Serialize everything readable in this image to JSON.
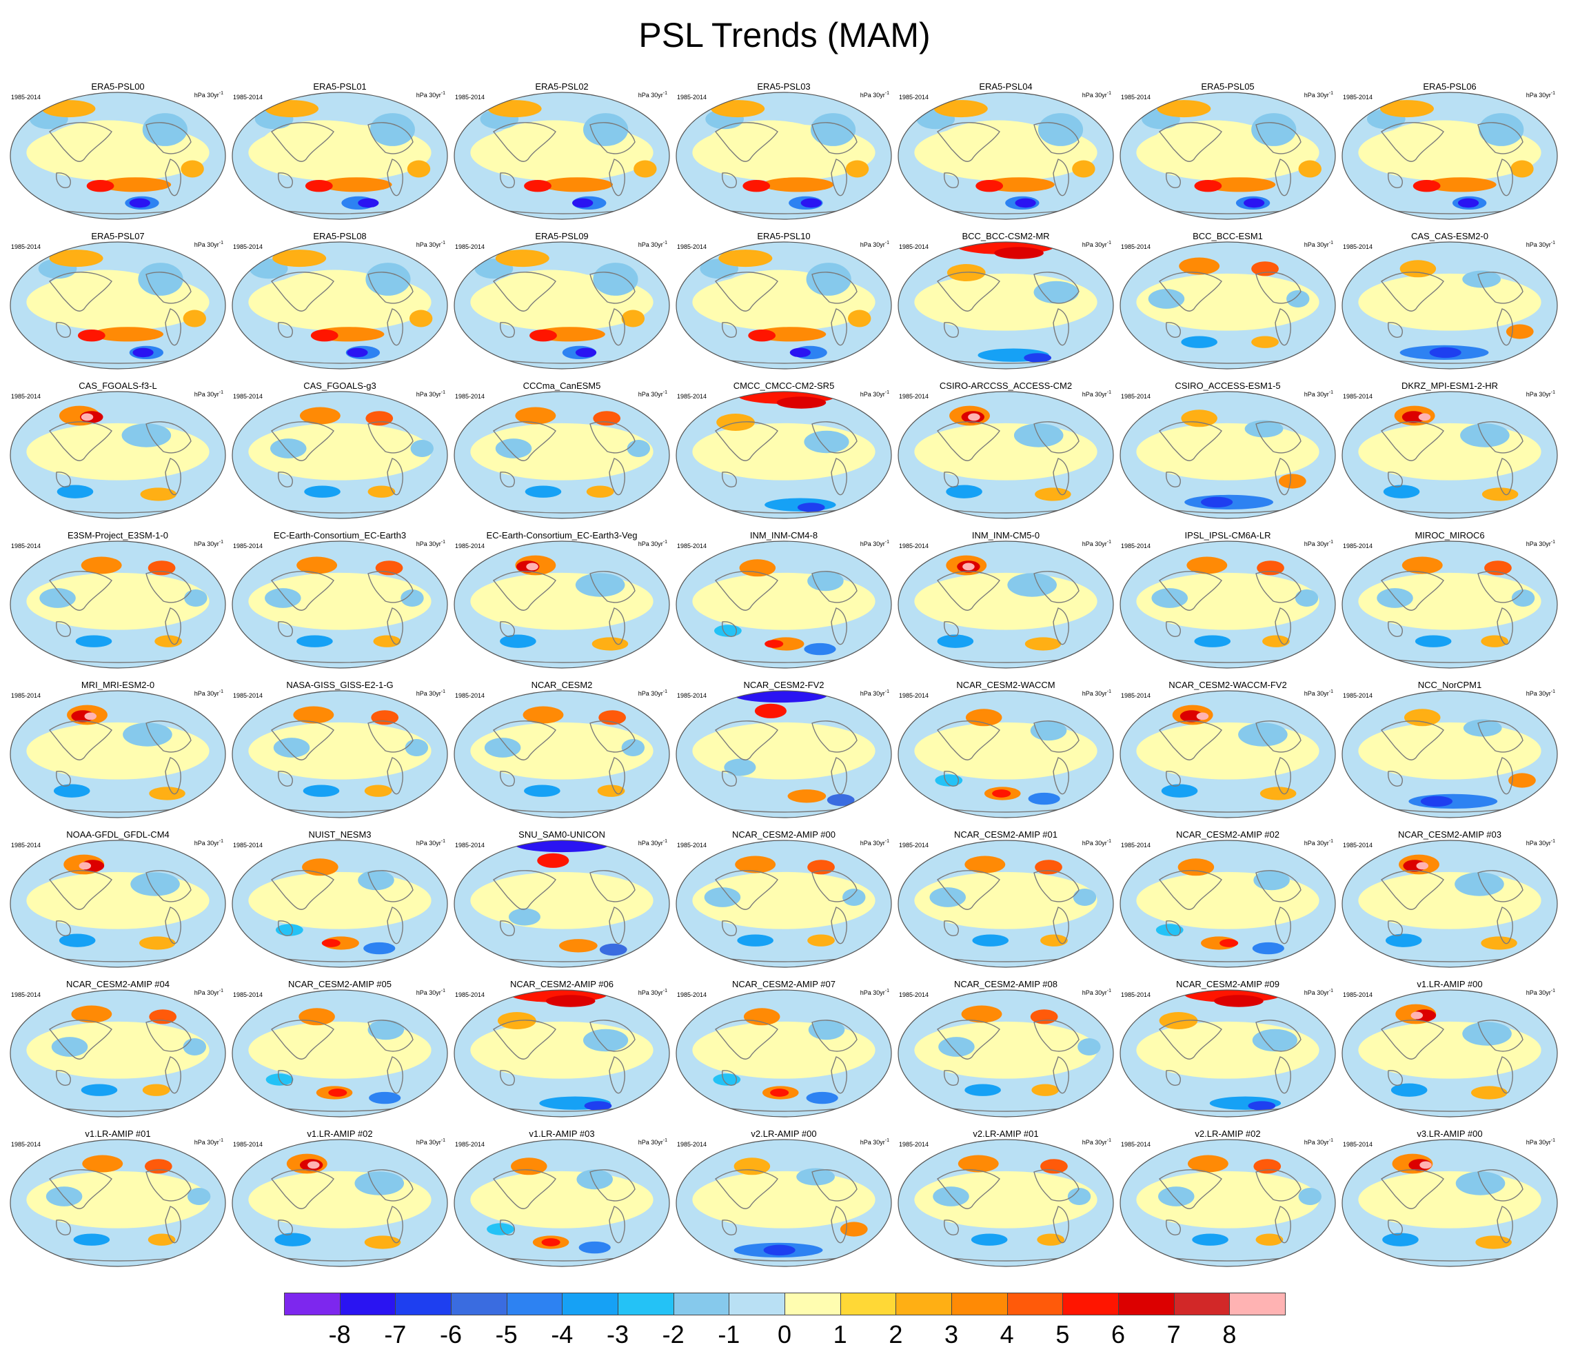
{
  "title": "PSL Trends (MAM)",
  "period_label": "1985-2014",
  "units_label": "hPa 30yr",
  "units_exponent": "-1",
  "panels": [
    {
      "name": "ERA5-PSL00",
      "pattern": "era5"
    },
    {
      "name": "ERA5-PSL01",
      "pattern": "era5"
    },
    {
      "name": "ERA5-PSL02",
      "pattern": "era5"
    },
    {
      "name": "ERA5-PSL03",
      "pattern": "era5"
    },
    {
      "name": "ERA5-PSL04",
      "pattern": "era5"
    },
    {
      "name": "ERA5-PSL05",
      "pattern": "era5"
    },
    {
      "name": "ERA5-PSL06",
      "pattern": "era5"
    },
    {
      "name": "ERA5-PSL07",
      "pattern": "era5"
    },
    {
      "name": "ERA5-PSL08",
      "pattern": "era5"
    },
    {
      "name": "ERA5-PSL09",
      "pattern": "era5"
    },
    {
      "name": "ERA5-PSL10",
      "pattern": "era5"
    },
    {
      "name": "BCC_BCC-CSM2-MR",
      "pattern": "arctic_high"
    },
    {
      "name": "BCC_BCC-ESM1",
      "pattern": "mixed"
    },
    {
      "name": "CAS_CAS-ESM2-0",
      "pattern": "south_low"
    },
    {
      "name": "CAS_FGOALS-f3-L",
      "pattern": "pacific_high"
    },
    {
      "name": "CAS_FGOALS-g3",
      "pattern": "mixed"
    },
    {
      "name": "CCCma_CanESM5",
      "pattern": "mixed"
    },
    {
      "name": "CMCC_CMCC-CM2-SR5",
      "pattern": "arctic_high"
    },
    {
      "name": "CSIRO-ARCCSS_ACCESS-CM2",
      "pattern": "pacific_high"
    },
    {
      "name": "CSIRO_ACCESS-ESM1-5",
      "pattern": "south_low"
    },
    {
      "name": "DKRZ_MPI-ESM1-2-HR",
      "pattern": "pacific_high"
    },
    {
      "name": "E3SM-Project_E3SM-1-0",
      "pattern": "mixed"
    },
    {
      "name": "EC-Earth-Consortium_EC-Earth3",
      "pattern": "mixed"
    },
    {
      "name": "EC-Earth-Consortium_EC-Earth3-Veg",
      "pattern": "pacific_high"
    },
    {
      "name": "INM_INM-CM4-8",
      "pattern": "south_high"
    },
    {
      "name": "INM_INM-CM5-0",
      "pattern": "pacific_high"
    },
    {
      "name": "IPSL_IPSL-CM6A-LR",
      "pattern": "mixed"
    },
    {
      "name": "MIROC_MIROC6",
      "pattern": "mixed"
    },
    {
      "name": "MRI_MRI-ESM2-0",
      "pattern": "pacific_high"
    },
    {
      "name": "NASA-GISS_GISS-E2-1-G",
      "pattern": "mixed"
    },
    {
      "name": "NCAR_CESM2",
      "pattern": "mixed"
    },
    {
      "name": "NCAR_CESM2-FV2",
      "pattern": "arctic_low"
    },
    {
      "name": "NCAR_CESM2-WACCM",
      "pattern": "south_high"
    },
    {
      "name": "NCAR_CESM2-WACCM-FV2",
      "pattern": "pacific_high"
    },
    {
      "name": "NCC_NorCPM1",
      "pattern": "south_low"
    },
    {
      "name": "NOAA-GFDL_GFDL-CM4",
      "pattern": "pacific_high"
    },
    {
      "name": "NUIST_NESM3",
      "pattern": "south_high"
    },
    {
      "name": "SNU_SAM0-UNICON",
      "pattern": "arctic_low"
    },
    {
      "name": "NCAR_CESM2-AMIP  #00",
      "pattern": "mixed"
    },
    {
      "name": "NCAR_CESM2-AMIP  #01",
      "pattern": "mixed"
    },
    {
      "name": "NCAR_CESM2-AMIP  #02",
      "pattern": "south_high"
    },
    {
      "name": "NCAR_CESM2-AMIP  #03",
      "pattern": "pacific_high"
    },
    {
      "name": "NCAR_CESM2-AMIP  #04",
      "pattern": "mixed"
    },
    {
      "name": "NCAR_CESM2-AMIP  #05",
      "pattern": "south_high"
    },
    {
      "name": "NCAR_CESM2-AMIP  #06",
      "pattern": "arctic_high"
    },
    {
      "name": "NCAR_CESM2-AMIP  #07",
      "pattern": "south_high"
    },
    {
      "name": "NCAR_CESM2-AMIP  #08",
      "pattern": "mixed"
    },
    {
      "name": "NCAR_CESM2-AMIP  #09",
      "pattern": "arctic_high"
    },
    {
      "name": "v1.LR-AMIP  #00",
      "pattern": "pacific_high"
    },
    {
      "name": "v1.LR-AMIP  #01",
      "pattern": "mixed"
    },
    {
      "name": "v1.LR-AMIP  #02",
      "pattern": "pacific_high"
    },
    {
      "name": "v1.LR-AMIP  #03",
      "pattern": "south_high"
    },
    {
      "name": "v2.LR-AMIP  #00",
      "pattern": "south_low"
    },
    {
      "name": "v2.LR-AMIP  #01",
      "pattern": "mixed"
    },
    {
      "name": "v2.LR-AMIP  #02",
      "pattern": "mixed"
    },
    {
      "name": "v3.LR-AMIP  #00",
      "pattern": "pacific_high"
    }
  ],
  "colorbar": {
    "colors": [
      "#7d27ee",
      "#2a14f2",
      "#1e3ff0",
      "#3a6ce0",
      "#2d82f2",
      "#16a1f5",
      "#24c2f6",
      "#86c9ec",
      "#b9e0f4",
      "#fffdb0",
      "#ffd836",
      "#ffaf14",
      "#ff8a05",
      "#ff5a0a",
      "#ff1500",
      "#dc0000",
      "#d22828",
      "#ffb3b3"
    ],
    "labels": [
      "-8",
      "-7",
      "-6",
      "-5",
      "-4",
      "-3",
      "-2",
      "-1",
      "0",
      "1",
      "2",
      "3",
      "4",
      "5",
      "6",
      "7",
      "8"
    ]
  }
}
